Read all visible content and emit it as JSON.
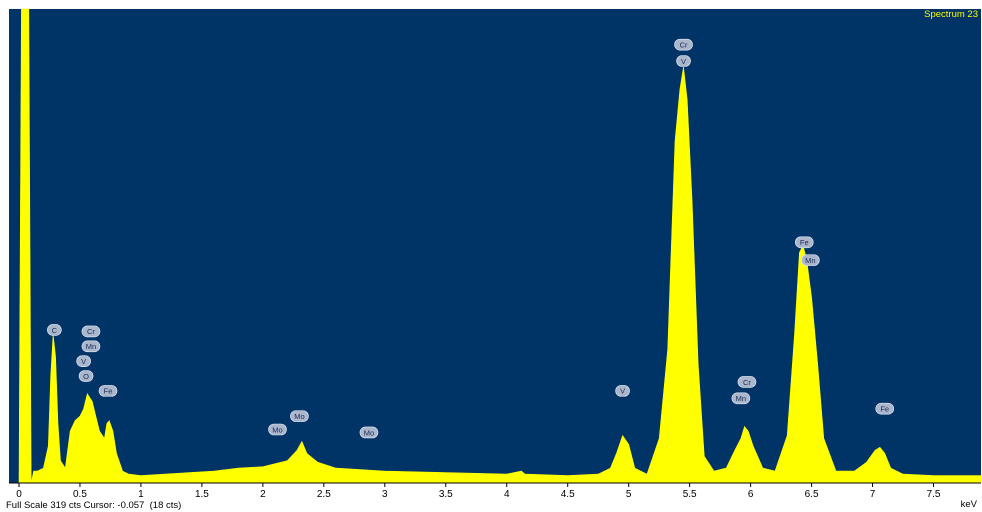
{
  "spectrum": {
    "title": "Spectrum 23",
    "status_text": "Full Scale 319 cts Cursor: -0.057  (18 cts)",
    "x_unit": "keV",
    "colors": {
      "background": "#003366",
      "fill": "#ffff00",
      "label_fill": "#aab6cc",
      "title": "#ffff00"
    }
  },
  "chart_data": {
    "type": "area",
    "title": "Spectrum 23",
    "xlabel": "keV",
    "ylabel": "",
    "xlim": [
      -0.05,
      7.9
    ],
    "ylim": [
      0,
      319
    ],
    "full_scale_cts": 319,
    "cursor_kev": -0.057,
    "cursor_cts": 18,
    "grid": false,
    "x_ticks": [
      0,
      0.5,
      1,
      1.5,
      2,
      2.5,
      3,
      3.5,
      4,
      4.5,
      5,
      5.5,
      6,
      6.5,
      7,
      7.5
    ],
    "x_tick_labels": [
      "0",
      "0.5",
      "1",
      "1.5",
      "2",
      "2.5",
      "3",
      "3.5",
      "4",
      "4.5",
      "5",
      "5.5",
      "6",
      "6.5",
      "7",
      "7.5"
    ],
    "series": [
      {
        "x": [
          -0.05,
          0.0,
          0.02,
          0.04,
          0.06,
          0.08,
          0.1,
          0.12,
          0.15,
          0.2,
          0.24,
          0.26,
          0.28,
          0.3,
          0.32,
          0.34,
          0.38,
          0.42,
          0.46,
          0.5,
          0.53,
          0.56,
          0.6,
          0.63,
          0.66,
          0.7,
          0.72,
          0.74,
          0.77,
          0.8,
          0.85,
          0.9,
          1.0,
          1.2,
          1.4,
          1.6,
          1.8,
          2.0,
          2.1,
          2.2,
          2.28,
          2.32,
          2.36,
          2.45,
          2.6,
          2.8,
          3.0,
          3.5,
          4.0,
          4.12,
          4.15,
          4.5,
          4.75,
          4.85,
          4.9,
          4.95,
          5.0,
          5.05,
          5.15,
          5.25,
          5.32,
          5.38,
          5.42,
          5.45,
          5.48,
          5.52,
          5.57,
          5.62,
          5.7,
          5.8,
          5.87,
          5.92,
          5.95,
          5.98,
          6.02,
          6.1,
          6.2,
          6.3,
          6.36,
          6.4,
          6.43,
          6.46,
          6.5,
          6.55,
          6.6,
          6.7,
          6.85,
          6.95,
          7.02,
          7.06,
          7.1,
          7.15,
          7.25,
          7.5,
          7.9
        ],
        "y": [
          0,
          0,
          330,
          330,
          330,
          330,
          0,
          8,
          8,
          10,
          25,
          72,
          100,
          85,
          40,
          15,
          10,
          35,
          42,
          45,
          50,
          60,
          55,
          45,
          35,
          30,
          40,
          42,
          35,
          20,
          8,
          6,
          5,
          6,
          7,
          8,
          10,
          11,
          13,
          15,
          22,
          28,
          20,
          14,
          10,
          9,
          8,
          7,
          6,
          8,
          6,
          5,
          6,
          10,
          20,
          32,
          26,
          10,
          6,
          30,
          90,
          230,
          265,
          280,
          258,
          190,
          80,
          18,
          8,
          10,
          22,
          30,
          38,
          35,
          25,
          10,
          8,
          32,
          100,
          155,
          160,
          150,
          125,
          80,
          30,
          8,
          8,
          14,
          22,
          24,
          20,
          10,
          6,
          5,
          5
        ]
      }
    ],
    "peak_labels": [
      {
        "text": "C",
        "x": 0.29,
        "cts": 103
      },
      {
        "text": "Cr",
        "x": 0.59,
        "cts": 102
      },
      {
        "text": "Mn",
        "x": 0.59,
        "cts": 92
      },
      {
        "text": "V",
        "x": 0.53,
        "cts": 82
      },
      {
        "text": "O",
        "x": 0.55,
        "cts": 72
      },
      {
        "text": "Fe",
        "x": 0.73,
        "cts": 62
      },
      {
        "text": "Mo",
        "x": 2.12,
        "cts": 36
      },
      {
        "text": "Mo",
        "x": 2.3,
        "cts": 45
      },
      {
        "text": "Mo",
        "x": 2.87,
        "cts": 34
      },
      {
        "text": "V",
        "x": 4.95,
        "cts": 62
      },
      {
        "text": "Cr",
        "x": 5.45,
        "cts": 295
      },
      {
        "text": "V",
        "x": 5.45,
        "cts": 284
      },
      {
        "text": "Cr",
        "x": 5.97,
        "cts": 68
      },
      {
        "text": "Mn",
        "x": 5.92,
        "cts": 57
      },
      {
        "text": "Fe",
        "x": 6.44,
        "cts": 162
      },
      {
        "text": "Mn",
        "x": 6.49,
        "cts": 150
      },
      {
        "text": "Fe",
        "x": 7.1,
        "cts": 50
      }
    ]
  }
}
